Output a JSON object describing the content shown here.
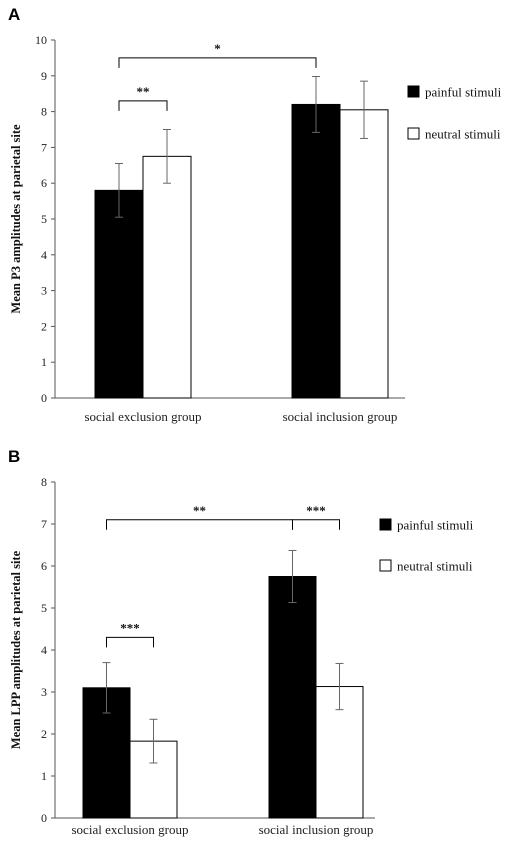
{
  "chart_data": [
    {
      "panel": "A",
      "type": "bar",
      "ylabel": "Mean P3 amplitudes at parietal site",
      "xlabel": "",
      "ylim": [
        0,
        10
      ],
      "yticks": [
        "0",
        "1",
        "2",
        "3",
        "4",
        "5",
        "6",
        "7",
        "8",
        "9",
        "10"
      ],
      "categories": [
        "social exclusion group",
        "social inclusion group"
      ],
      "series": [
        {
          "name": "painful stimuli",
          "color": "#000000",
          "values": [
            5.8,
            8.2
          ],
          "errors": [
            0.75,
            0.78
          ]
        },
        {
          "name": "neutral stimuli",
          "color": "#ffffff",
          "values": [
            6.75,
            8.05
          ],
          "errors": [
            0.75,
            0.8
          ]
        }
      ],
      "significance": [
        {
          "label": "*",
          "from": [
            0,
            0
          ],
          "to": [
            1,
            0
          ],
          "y": 9.5
        },
        {
          "label": "**",
          "from": [
            0,
            0
          ],
          "to": [
            0,
            1
          ],
          "y": 8.3
        }
      ],
      "legend_position": "right"
    },
    {
      "panel": "B",
      "type": "bar",
      "ylabel": "Mean LPP amplitudes at parietal site",
      "xlabel": "",
      "ylim": [
        0,
        8
      ],
      "yticks": [
        "0",
        "1",
        "2",
        "3",
        "4",
        "5",
        "6",
        "7",
        "8"
      ],
      "categories": [
        "social exclusion group",
        "social inclusion group"
      ],
      "series": [
        {
          "name": "painful stimuli",
          "color": "#000000",
          "values": [
            3.1,
            5.75
          ],
          "errors": [
            0.6,
            0.62
          ]
        },
        {
          "name": "neutral stimuli",
          "color": "#ffffff",
          "values": [
            1.83,
            3.13
          ],
          "errors": [
            0.52,
            0.55
          ]
        }
      ],
      "significance": [
        {
          "label": "**",
          "from": [
            0,
            0
          ],
          "to": [
            1,
            0
          ],
          "y": 7.1
        },
        {
          "label": "***",
          "from": [
            1,
            0
          ],
          "to": [
            1,
            1
          ],
          "y": 7.1
        },
        {
          "label": "***",
          "from": [
            0,
            0
          ],
          "to": [
            0,
            1
          ],
          "y": 4.3
        }
      ],
      "legend_position": "right"
    }
  ]
}
